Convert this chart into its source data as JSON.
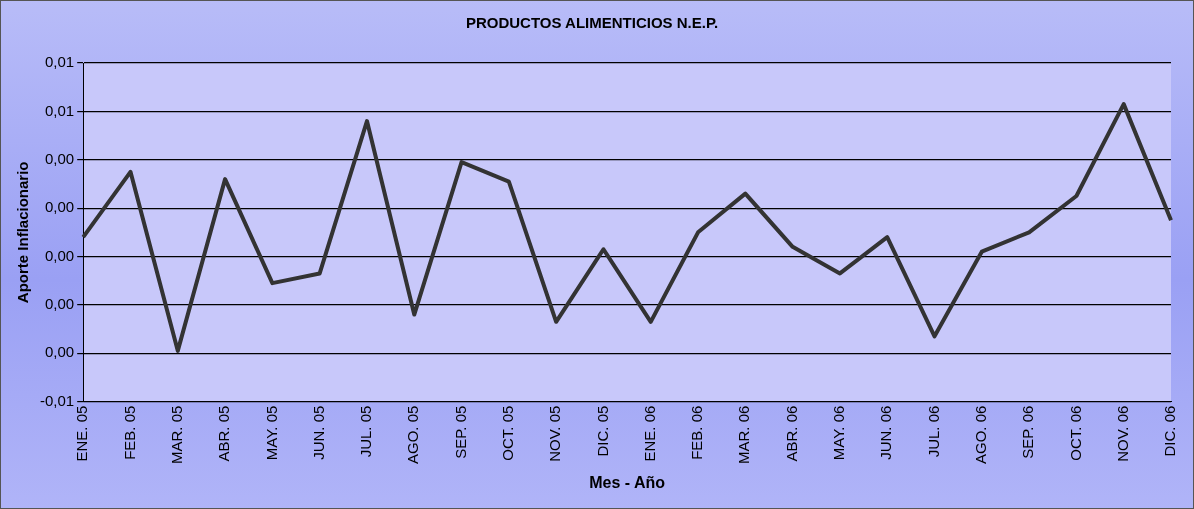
{
  "chart_data": {
    "type": "line",
    "title": "PRODUCTOS ALIMENTICIOS N.E.P.",
    "xlabel": "Mes - Año",
    "ylabel": "Aporte Inflacionario",
    "categories": [
      "ENE. 05",
      "FEB. 05",
      "MAR. 05",
      "ABR. 05",
      "MAY. 05",
      "JUN. 05",
      "JUL. 05",
      "AGO. 05",
      "SEP. 05",
      "OCT. 05",
      "NOV. 05",
      "DIC. 05",
      "ENE. 06",
      "FEB. 06",
      "MAR. 06",
      "ABR. 06",
      "MAY. 06",
      "JUN. 06",
      "JUL. 06",
      "AGO. 06",
      "SEP. 06",
      "OCT. 06",
      "NOV. 06",
      "DIC. 06"
    ],
    "series": [
      {
        "color": "#333333",
        "values": [
          0.0008,
          0.0035,
          -0.0039,
          0.0032,
          -0.0011,
          -0.0007,
          0.0056,
          -0.0024,
          0.0039,
          0.0031,
          -0.0027,
          0.0003,
          -0.0027,
          0.001,
          0.0026,
          0.0004,
          -0.0007,
          0.0008,
          -0.0033,
          0.0002,
          0.001,
          0.0025,
          0.0063,
          0.0015
        ]
      }
    ],
    "ylim": [
      -0.006,
      0.008
    ],
    "yticks": [
      {
        "value": -0.006,
        "label": "-0,01"
      },
      {
        "value": -0.004,
        "label": "0,00"
      },
      {
        "value": -0.002,
        "label": "0,00"
      },
      {
        "value": 0,
        "label": "0,00"
      },
      {
        "value": 0.002,
        "label": "0,00"
      },
      {
        "value": 0.004,
        "label": "0,00"
      },
      {
        "value": 0.006,
        "label": "0,01"
      },
      {
        "value": 0.008,
        "label": "0,01"
      }
    ],
    "grid": "y",
    "legend": false,
    "marker": "none",
    "line_style": "solid"
  }
}
